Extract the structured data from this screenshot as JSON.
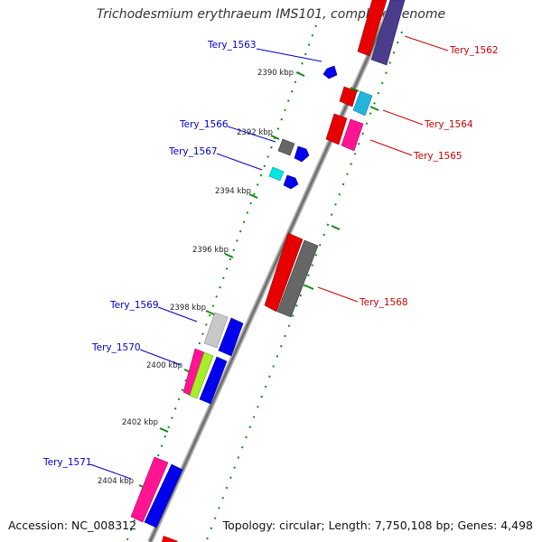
{
  "title": "Trichodesmium erythraeum IMS101, complete genome",
  "footer": {
    "accession": "Accession: NC_008312",
    "summary": "Topology: circular; Length: 7,750,108 bp; Genes: 4,498"
  },
  "colors": {
    "left_label": "#0000cc",
    "right_label": "#cc0000",
    "backbone": "#777777",
    "tick": "#138a13"
  },
  "kbp_ticks": [
    {
      "label": "2390 kbp"
    },
    {
      "label": "2392 kbp"
    },
    {
      "label": "2394 kbp"
    },
    {
      "label": "2396 kbp"
    },
    {
      "label": "2398 kbp"
    },
    {
      "label": "2400 kbp"
    },
    {
      "label": "2402 kbp"
    },
    {
      "label": "2404 kbp"
    }
  ],
  "gene_labels": [
    {
      "name": "Tery_1562",
      "side": "right"
    },
    {
      "name": "Tery_1563",
      "side": "left"
    },
    {
      "name": "Tery_1564",
      "side": "right"
    },
    {
      "name": "Tery_1565",
      "side": "right"
    },
    {
      "name": "Tery_1566",
      "side": "left"
    },
    {
      "name": "Tery_1567",
      "side": "left"
    },
    {
      "name": "Tery_1568",
      "side": "right"
    },
    {
      "name": "Tery_1569",
      "side": "left"
    },
    {
      "name": "Tery_1570",
      "side": "left"
    },
    {
      "name": "Tery_1571",
      "side": "left"
    }
  ]
}
